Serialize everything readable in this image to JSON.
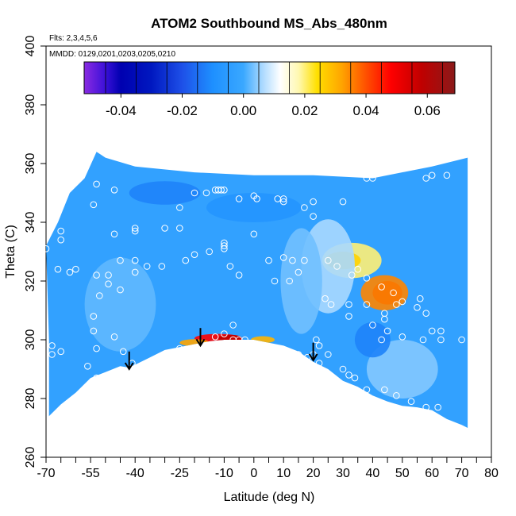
{
  "chart_data": {
    "type": "heatmap",
    "title": "ATOM2 Southbound MS_Abs_480nm",
    "annotations": {
      "flights": "Flts: 2,3,4,5,6",
      "dates": "MMDD: 0129,0201,0203,0205,0210"
    },
    "xlabel": "Latitude (deg N)",
    "ylabel": "Theta (C)",
    "xlim": [
      -70,
      80
    ],
    "ylim": [
      260,
      400
    ],
    "x_ticks": [
      -70,
      -55,
      -40,
      -25,
      -10,
      0,
      10,
      20,
      30,
      40,
      50,
      60,
      70,
      80
    ],
    "x_tick_labels": [
      "-70",
      "-55",
      "-40",
      "-25",
      "-10",
      "0",
      "10",
      "20",
      "30",
      "40",
      "50",
      "60",
      "70",
      "80"
    ],
    "x_minor_ticks": [
      -65,
      -60,
      -50,
      -45,
      -35,
      -30,
      -20,
      -15,
      -5,
      5,
      15,
      25,
      35,
      45,
      55,
      65,
      75
    ],
    "y_ticks": [
      260,
      280,
      300,
      320,
      340,
      360,
      380,
      400
    ],
    "y_tick_labels": [
      "260",
      "280",
      "300",
      "320",
      "340",
      "360",
      "380",
      "400"
    ],
    "colorbar": {
      "range": [
        -0.052,
        0.069
      ],
      "ticks": [
        -0.04,
        -0.02,
        0.0,
        0.02,
        0.04,
        0.06
      ],
      "tick_labels": [
        "-0.04",
        "-0.02",
        "0.00",
        "0.02",
        "0.04",
        "0.06"
      ],
      "gradient": [
        {
          "v": -0.052,
          "c": "#8a2be2"
        },
        {
          "v": -0.045,
          "c": "#3a10d8"
        },
        {
          "v": -0.04,
          "c": "#0000b0"
        },
        {
          "v": -0.03,
          "c": "#0018c0"
        },
        {
          "v": -0.02,
          "c": "#1e50e8"
        },
        {
          "v": -0.01,
          "c": "#1e90ff"
        },
        {
          "v": 0.0,
          "c": "#3aa8ff"
        },
        {
          "v": 0.006,
          "c": "#a8d8ff"
        },
        {
          "v": 0.012,
          "c": "#ffffff"
        },
        {
          "v": 0.018,
          "c": "#fff8b0"
        },
        {
          "v": 0.024,
          "c": "#ffe000"
        },
        {
          "v": 0.032,
          "c": "#ffa500"
        },
        {
          "v": 0.04,
          "c": "#ff5000"
        },
        {
          "v": 0.048,
          "c": "#ff0000"
        },
        {
          "v": 0.058,
          "c": "#c00000"
        },
        {
          "v": 0.069,
          "c": "#8b1a1a"
        }
      ]
    },
    "field_background_value": -0.003,
    "data_region_outline": [
      [
        -69,
        274
      ],
      [
        -65,
        278
      ],
      [
        -60,
        282
      ],
      [
        -55,
        287
      ],
      [
        -50,
        289
      ],
      [
        -45,
        291
      ],
      [
        -42,
        290.5
      ],
      [
        -39,
        292
      ],
      [
        -35,
        294
      ],
      [
        -30,
        296.5
      ],
      [
        -25,
        297.5
      ],
      [
        -20,
        298.5
      ],
      [
        -15,
        299.5
      ],
      [
        -10,
        300
      ],
      [
        -5,
        300
      ],
      [
        0,
        300
      ],
      [
        5,
        299
      ],
      [
        10,
        298
      ],
      [
        15,
        296
      ],
      [
        20,
        292.5
      ],
      [
        25,
        290
      ],
      [
        30,
        286
      ],
      [
        35,
        284
      ],
      [
        40,
        281
      ],
      [
        45,
        279
      ],
      [
        50,
        277.5
      ],
      [
        55,
        277
      ],
      [
        60,
        276
      ],
      [
        65,
        273
      ],
      [
        70,
        271
      ],
      [
        72,
        270
      ],
      [
        72,
        362
      ],
      [
        60,
        359
      ],
      [
        40,
        355
      ],
      [
        20,
        356
      ],
      [
        0,
        356
      ],
      [
        -20,
        357
      ],
      [
        -40,
        359
      ],
      [
        -50,
        362
      ],
      [
        -53,
        364
      ],
      [
        -57,
        355
      ],
      [
        -62,
        350
      ],
      [
        -66,
        340
      ],
      [
        -70,
        332
      ],
      [
        -69,
        300
      ]
    ],
    "features": [
      {
        "x": 45,
        "y": 316,
        "rx": 5,
        "ry": 4,
        "v": 0.055
      },
      {
        "x": 44,
        "y": 316,
        "rx": 8,
        "ry": 6,
        "v": 0.035
      },
      {
        "x": 33,
        "y": 327,
        "rx": 10,
        "ry": 6,
        "v": 0.02
      },
      {
        "x": 30,
        "y": 327,
        "rx": 6,
        "ry": 3,
        "v": 0.026
      },
      {
        "x": -12,
        "y": 300.5,
        "rx": 8,
        "ry": 1.5,
        "v": 0.048
      },
      {
        "x": -8,
        "y": 300.5,
        "rx": 4,
        "ry": 1.2,
        "v": 0.058
      },
      {
        "x": -20,
        "y": 299,
        "rx": 5,
        "ry": 1.2,
        "v": 0.032
      },
      {
        "x": 3,
        "y": 300,
        "rx": 4,
        "ry": 1.2,
        "v": 0.03
      },
      {
        "x": 25,
        "y": 325,
        "rx": 9,
        "ry": 16,
        "v": 0.006
      },
      {
        "x": 16,
        "y": 320,
        "rx": 7,
        "ry": 18,
        "v": 0.003
      },
      {
        "x": -45,
        "y": 312,
        "rx": 12,
        "ry": 16,
        "v": 0.002
      },
      {
        "x": 50,
        "y": 290,
        "rx": 12,
        "ry": 10,
        "v": 0.004
      },
      {
        "x": -30,
        "y": 350,
        "rx": 12,
        "ry": 4,
        "v": -0.012
      },
      {
        "x": 0,
        "y": 345,
        "rx": 16,
        "ry": 5,
        "v": -0.008
      },
      {
        "x": 40,
        "y": 300,
        "rx": 6,
        "ry": 6,
        "v": -0.012
      }
    ],
    "observations": [
      [
        -65,
        337
      ],
      [
        -65,
        334
      ],
      [
        -70,
        331
      ],
      [
        -66,
        324
      ],
      [
        -62,
        323
      ],
      [
        -60,
        324
      ],
      [
        -53,
        353
      ],
      [
        -54,
        346
      ],
      [
        -47,
        351
      ],
      [
        -47,
        336
      ],
      [
        -40,
        338
      ],
      [
        -40,
        337
      ],
      [
        -30,
        338
      ],
      [
        -25,
        338
      ],
      [
        -45,
        327
      ],
      [
        -40,
        327
      ],
      [
        -20,
        329
      ],
      [
        -23,
        327
      ],
      [
        -53,
        322
      ],
      [
        -49,
        322
      ],
      [
        -49,
        319
      ],
      [
        -45,
        317
      ],
      [
        -40,
        323
      ],
      [
        -36,
        325
      ],
      [
        -31,
        325
      ],
      [
        -52,
        315
      ],
      [
        -54,
        308
      ],
      [
        -54,
        303
      ],
      [
        -47,
        301
      ],
      [
        -53,
        297
      ],
      [
        -68,
        298
      ],
      [
        -68,
        295
      ],
      [
        -65,
        296
      ],
      [
        -56,
        291
      ],
      [
        -53,
        287
      ],
      [
        -55,
        285
      ],
      [
        -48,
        285
      ],
      [
        -44,
        296
      ],
      [
        -41,
        292
      ],
      [
        -35,
        292
      ],
      [
        -25,
        297
      ],
      [
        -20,
        297
      ],
      [
        -15,
        298
      ],
      [
        -10,
        302
      ],
      [
        -13,
        301
      ],
      [
        -7,
        300
      ],
      [
        -5,
        300
      ],
      [
        -3,
        300
      ],
      [
        -7,
        305
      ],
      [
        -10,
        331
      ],
      [
        -15,
        330
      ],
      [
        -8,
        325
      ],
      [
        -10,
        333
      ],
      [
        -10,
        332
      ],
      [
        -5,
        322
      ],
      [
        0,
        336
      ],
      [
        5,
        327
      ],
      [
        10,
        328
      ],
      [
        7,
        320
      ],
      [
        13,
        327
      ],
      [
        17,
        327
      ],
      [
        15,
        323
      ],
      [
        12,
        320
      ],
      [
        -25,
        345
      ],
      [
        -20,
        350
      ],
      [
        -16,
        350
      ],
      [
        -12,
        351
      ],
      [
        -13,
        351
      ],
      [
        -11,
        351
      ],
      [
        -10,
        351
      ],
      [
        -5,
        348
      ],
      [
        0,
        349
      ],
      [
        1,
        348
      ],
      [
        8,
        348
      ],
      [
        10,
        348
      ],
      [
        10,
        347
      ],
      [
        17,
        345
      ],
      [
        20,
        347
      ],
      [
        20,
        342
      ],
      [
        30,
        347
      ],
      [
        25,
        327
      ],
      [
        28,
        325
      ],
      [
        35,
        324
      ],
      [
        33,
        322
      ],
      [
        38,
        321
      ],
      [
        43,
        318
      ],
      [
        47,
        316
      ],
      [
        44,
        309
      ],
      [
        44,
        307
      ],
      [
        48,
        312
      ],
      [
        50,
        313
      ],
      [
        55,
        311
      ],
      [
        56,
        314
      ],
      [
        58,
        309
      ],
      [
        60,
        303
      ],
      [
        63,
        303
      ],
      [
        63,
        300
      ],
      [
        57,
        300
      ],
      [
        50,
        301
      ],
      [
        45,
        303
      ],
      [
        40,
        305
      ],
      [
        43,
        300
      ],
      [
        38,
        312
      ],
      [
        32,
        312
      ],
      [
        32,
        308
      ],
      [
        26,
        312
      ],
      [
        24,
        314
      ],
      [
        21,
        300
      ],
      [
        22,
        298
      ],
      [
        25,
        295
      ],
      [
        20,
        295
      ],
      [
        15,
        295
      ],
      [
        18,
        294
      ],
      [
        22,
        292
      ],
      [
        30,
        290
      ],
      [
        32,
        288
      ],
      [
        34,
        287
      ],
      [
        38,
        283
      ],
      [
        44,
        283
      ],
      [
        48,
        281
      ],
      [
        53,
        279
      ],
      [
        58,
        277
      ],
      [
        62,
        277
      ],
      [
        70,
        300
      ],
      [
        65,
        356
      ],
      [
        38,
        355
      ],
      [
        40,
        355
      ],
      [
        60,
        356
      ],
      [
        58,
        355
      ]
    ],
    "arrows": [
      {
        "x": -42,
        "y_from": 296,
        "y_to": 290
      },
      {
        "x": -18,
        "y_from": 304,
        "y_to": 298
      },
      {
        "x": 20,
        "y_from": 299,
        "y_to": 293
      }
    ]
  }
}
